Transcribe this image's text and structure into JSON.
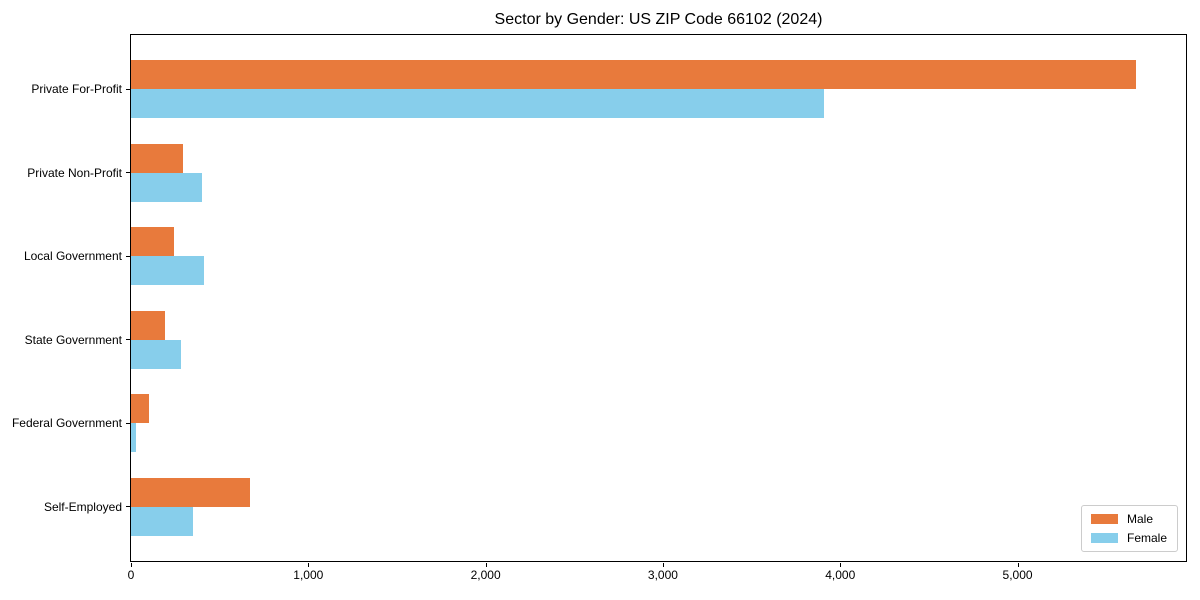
{
  "chart_data": {
    "type": "bar",
    "orientation": "horizontal",
    "title": "Sector by Gender: US ZIP Code 66102 (2024)",
    "categories": [
      "Private For-Profit",
      "Private Non-Profit",
      "Local Government",
      "State Government",
      "Federal Government",
      "Self-Employed"
    ],
    "series": [
      {
        "name": "Male",
        "color": "#e87a3c",
        "values": [
          5667,
          291,
          243,
          192,
          103,
          673
        ]
      },
      {
        "name": "Female",
        "color": "#87ceeb",
        "values": [
          3911,
          401,
          414,
          284,
          30,
          348
        ]
      }
    ],
    "xlabel": "",
    "ylabel": "",
    "xlim": [
      0,
      5950
    ],
    "xticks": [
      0,
      1000,
      2000,
      3000,
      4000,
      5000
    ],
    "xtick_labels": [
      "0",
      "1,000",
      "2,000",
      "3,000",
      "4,000",
      "5,000"
    ],
    "grid": false,
    "legend_position": "lower right",
    "bar_group_width_fraction": 0.7,
    "axis_color": "#000000",
    "legend_border_color": "#cccccc"
  }
}
